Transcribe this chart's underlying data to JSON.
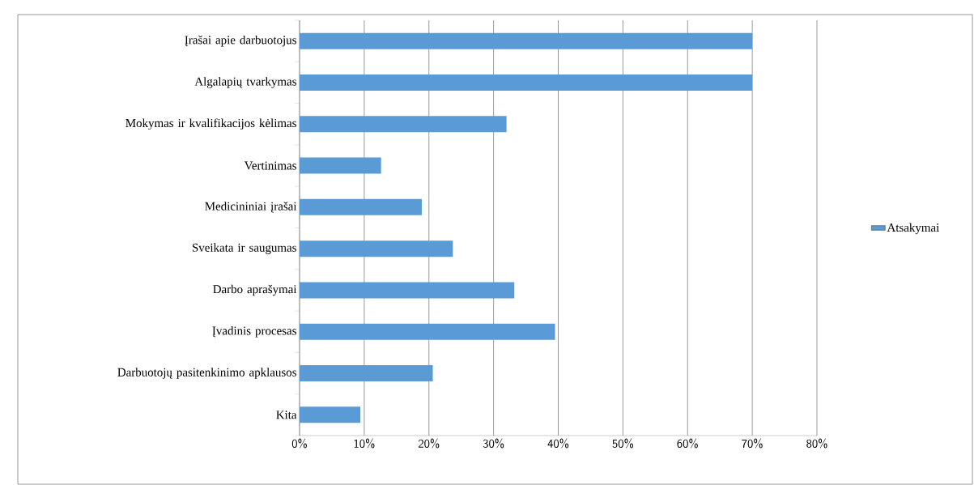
{
  "chart_data": {
    "type": "bar",
    "orientation": "horizontal",
    "categories": [
      "Įrašai apie darbuotojus",
      "Algalapių tvarkymas",
      "Mokymas ir kvalifikacijos kėlimas",
      "Vertinimas",
      "Medicininiai įrašai",
      "Sveikata ir saugumas",
      "Darbo aprašymai",
      "Įvadinis procesas",
      "Darbuotojų pasitenkinimo apklausos",
      "Kita"
    ],
    "series": [
      {
        "name": "Atsakymai",
        "color": "#5b9bd5",
        "values": [
          70,
          70,
          32,
          12.6,
          18.9,
          23.7,
          33.2,
          39.5,
          20.6,
          9.4
        ]
      }
    ],
    "xlim": [
      0,
      80
    ],
    "xticks": [
      {
        "value": 0,
        "label": "0%"
      },
      {
        "value": 10,
        "label": "10%"
      },
      {
        "value": 20,
        "label": "20%"
      },
      {
        "value": 30,
        "label": "30%"
      },
      {
        "value": 40,
        "label": "40%"
      },
      {
        "value": 50,
        "label": "50%"
      },
      {
        "value": 60,
        "label": "60%"
      },
      {
        "value": 70,
        "label": "70%"
      },
      {
        "value": 80,
        "label": "80%"
      }
    ],
    "grid": "x",
    "legend": "right"
  }
}
